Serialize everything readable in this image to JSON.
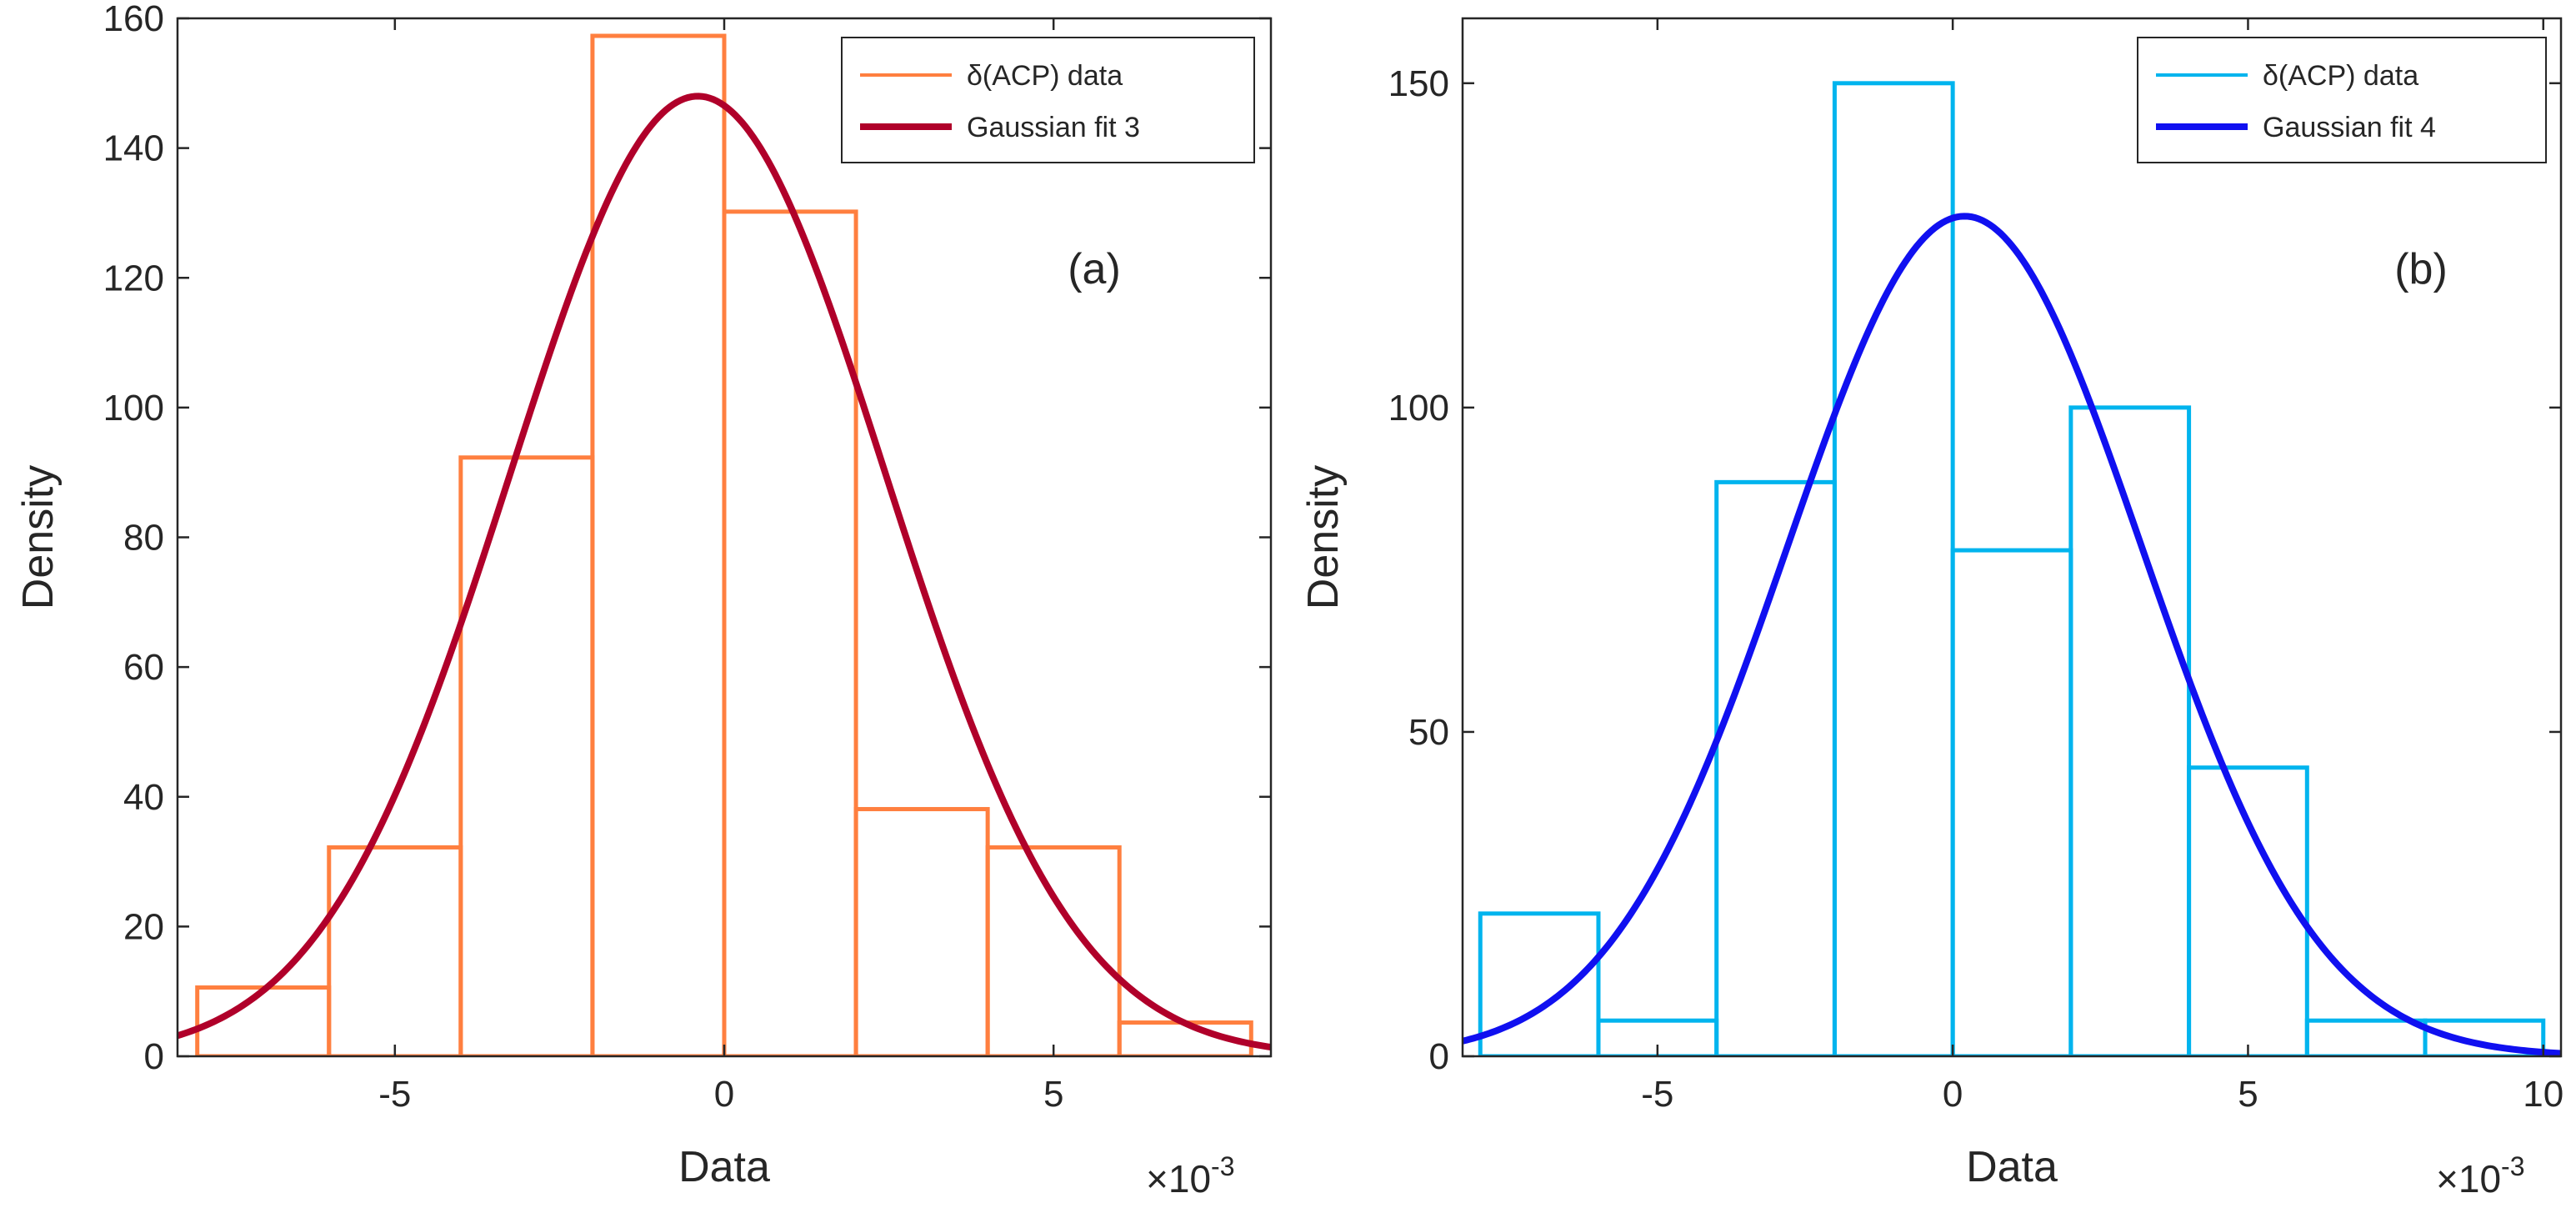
{
  "chart_data": [
    {
      "type": "histogram",
      "panel_label": "(a)",
      "xlabel": "Data",
      "ylabel": "Density",
      "x_multiplier": "10",
      "x_exponent": "-3",
      "xlim": [
        -8.3,
        8.3
      ],
      "ylim": [
        0,
        160
      ],
      "xticks": [
        -5,
        0,
        5
      ],
      "yticks": [
        0,
        20,
        40,
        60,
        80,
        100,
        120,
        140,
        160
      ],
      "bin_edges": [
        -8,
        -6,
        -4,
        -2,
        0,
        2,
        4,
        6,
        8
      ],
      "bin_heights": [
        10.6,
        32.2,
        92.3,
        157.3,
        130.2,
        38.1,
        32.2,
        5.2
      ],
      "histogram_color": "#FF7F3F",
      "fit": {
        "type": "gaussian",
        "peak": 148,
        "mean": -0.4,
        "sigma": 2.85,
        "color": "#B0002A"
      },
      "legend": [
        {
          "label": "δ(ACP) data",
          "kind": "hist"
        },
        {
          "label": "Gaussian fit 3",
          "kind": "fit"
        }
      ],
      "legend_position": "top-right"
    },
    {
      "type": "histogram",
      "panel_label": "(b)",
      "xlabel": "Data",
      "ylabel": "Density",
      "x_multiplier": "10",
      "x_exponent": "-3",
      "xlim": [
        -8.3,
        10.3
      ],
      "ylim": [
        0,
        160
      ],
      "xticks": [
        -5,
        0,
        5,
        10
      ],
      "yticks": [
        0,
        50,
        100,
        150
      ],
      "bin_edges": [
        -8,
        -6,
        -4,
        -2,
        0,
        2,
        4,
        6,
        8,
        10
      ],
      "bin_heights": [
        22,
        5.5,
        88.5,
        150,
        78,
        100,
        44.5,
        5.5,
        5.5
      ],
      "histogram_color": "#00B4EE",
      "fit": {
        "type": "gaussian",
        "peak": 129.5,
        "mean": 0.2,
        "sigma": 3.0,
        "color": "#1010F0"
      },
      "legend": [
        {
          "label": "δ(ACP) data",
          "kind": "hist"
        },
        {
          "label": "Gaussian fit 4",
          "kind": "fit"
        }
      ],
      "legend_position": "top-right"
    }
  ]
}
